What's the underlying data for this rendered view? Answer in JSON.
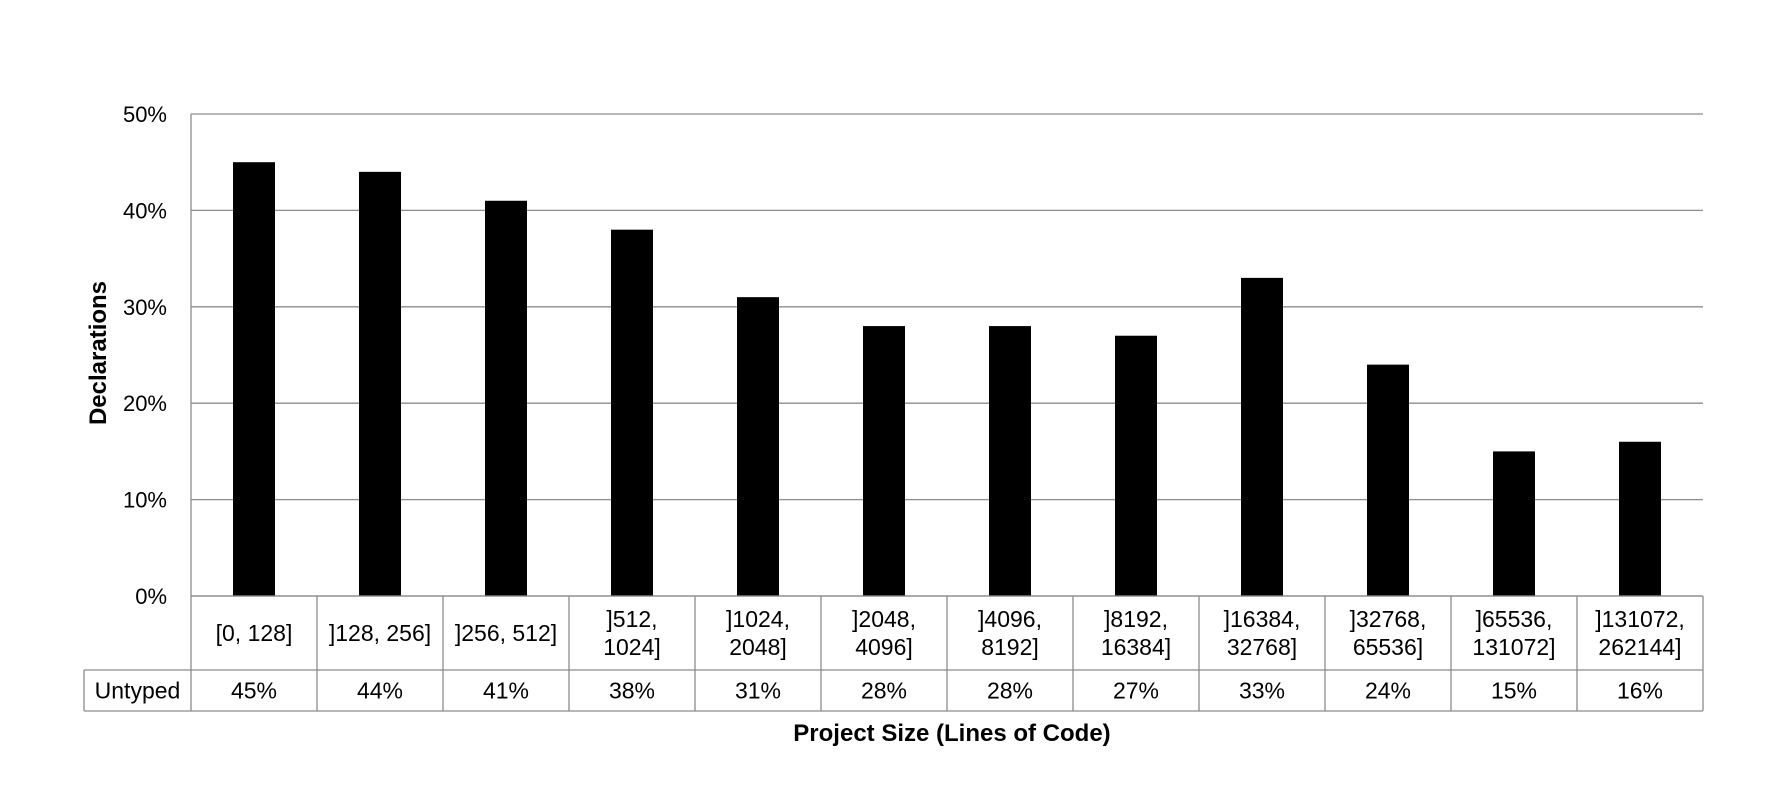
{
  "chart_data": {
    "type": "bar",
    "title": "",
    "xlabel": "Project Size (Lines of Code)",
    "ylabel": "Declarations",
    "ylim": [
      0,
      50
    ],
    "y_ticks": [
      "0%",
      "10%",
      "20%",
      "30%",
      "40%",
      "50%"
    ],
    "grid": true,
    "legend": "none",
    "bar_color": "#000000",
    "categories": [
      [
        "[0, 128]"
      ],
      [
        "]128, 256]"
      ],
      [
        "]256, 512]"
      ],
      [
        "]512,",
        "1024]"
      ],
      [
        "]1024,",
        "2048]"
      ],
      [
        "]2048,",
        "4096]"
      ],
      [
        "]4096,",
        "8192]"
      ],
      [
        "]8192,",
        "16384]"
      ],
      [
        "]16384,",
        "32768]"
      ],
      [
        "]32768,",
        "65536]"
      ],
      [
        "]65536,",
        "131072]"
      ],
      [
        "]131072,",
        "262144]"
      ]
    ],
    "series": [
      {
        "name": "Untyped",
        "values": [
          45,
          44,
          41,
          38,
          31,
          28,
          28,
          27,
          33,
          24,
          15,
          16
        ],
        "labels": [
          "45%",
          "44%",
          "41%",
          "38%",
          "31%",
          "28%",
          "28%",
          "27%",
          "33%",
          "24%",
          "15%",
          "16%"
        ]
      }
    ]
  }
}
